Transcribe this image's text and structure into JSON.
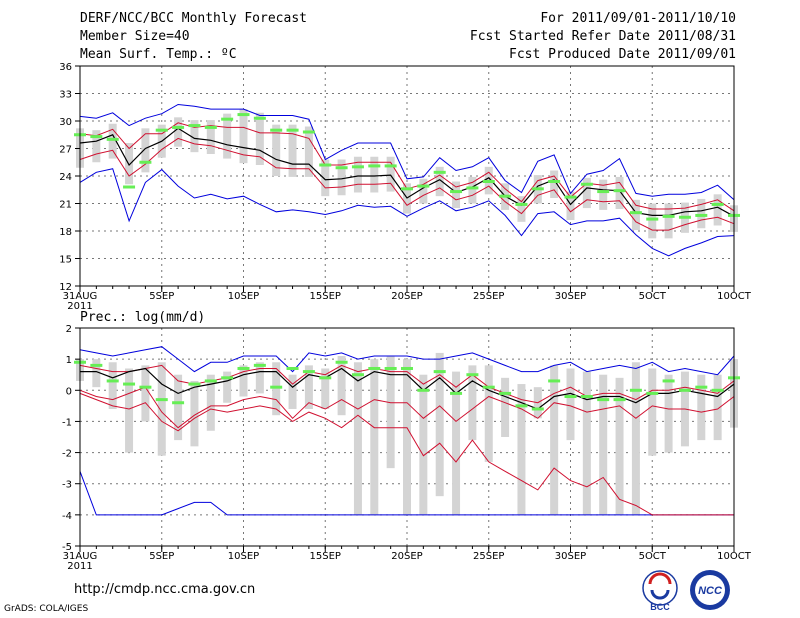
{
  "header": {
    "title": "DERF/NCC/BCC Monthly Forecast",
    "member_size": "Member Size=40",
    "variable": "Mean Surf. Temp.: ºC",
    "period": "For 2011/09/01-2011/10/10",
    "started": "Fcst Started Refer Date 2011/08/31",
    "produced": "Fcst Produced Date 2011/09/01"
  },
  "footer": {
    "url": "http://cmdp.ncc.cma.gov.cn",
    "grads": "GrADS: COLA/IGES",
    "logo_left": "BCC",
    "logo_right": "NCC"
  },
  "colors": {
    "bar": "#d4d4d4",
    "median": "#66ee55",
    "mean": "#000000",
    "envelope": "#d01030",
    "extreme": "#0000dd",
    "grid": "#777777"
  },
  "chart_data": [
    {
      "type": "line",
      "title": "Mean Surf. Temp.: ºC",
      "ylim": [
        12,
        36
      ],
      "yticks": [
        12,
        15,
        18,
        21,
        24,
        27,
        30,
        33,
        36
      ],
      "xlim": [
        0,
        40
      ],
      "xticks": [
        {
          "x": 0,
          "label": "31AUG"
        },
        {
          "x": 5,
          "label": "5SEP"
        },
        {
          "x": 10,
          "label": "10SEP"
        },
        {
          "x": 15,
          "label": "15SEP"
        },
        {
          "x": 20,
          "label": "20SEP"
        },
        {
          "x": 25,
          "label": "25SEP"
        },
        {
          "x": 30,
          "label": "30SEP"
        },
        {
          "x": 35,
          "label": "5OCT"
        },
        {
          "x": 40,
          "label": "10OCT"
        }
      ],
      "year_label": "2011",
      "series": [
        {
          "name": "max",
          "values": [
            30.5,
            30.3,
            30.9,
            29.5,
            30.3,
            30.8,
            31.8,
            31.6,
            31.3,
            31.3,
            31.3,
            30.6,
            30.6,
            30.6,
            30.2,
            25.8,
            26.8,
            27.6,
            27.6,
            27.6,
            23.7,
            23.9,
            26.0,
            24.6,
            25.0,
            26.0,
            23.5,
            22.2,
            25.6,
            26.3,
            22.1,
            24.2,
            24.6,
            25.9,
            22.1,
            21.8,
            22.0,
            22.0,
            22.2,
            23.0,
            21.4
          ]
        },
        {
          "name": "upper",
          "values": [
            28.6,
            28.4,
            29.1,
            27.0,
            28.6,
            28.6,
            29.8,
            29.3,
            29.5,
            29.3,
            29.3,
            28.7,
            28.7,
            28.6,
            28.1,
            25.2,
            25.2,
            25.5,
            25.5,
            25.5,
            22.6,
            23.1,
            24.1,
            22.8,
            23.3,
            24.4,
            22.6,
            21.2,
            23.5,
            24.0,
            21.7,
            23.2,
            23.0,
            23.3,
            20.8,
            20.4,
            20.4,
            20.5,
            20.9,
            21.4,
            20.2
          ]
        },
        {
          "name": "mean",
          "values": [
            27.6,
            27.8,
            28.5,
            25.2,
            27.0,
            27.8,
            29.2,
            28.1,
            27.9,
            27.4,
            27.1,
            26.8,
            25.8,
            25.3,
            25.3,
            23.6,
            23.7,
            24.0,
            24.0,
            24.1,
            21.6,
            22.7,
            23.6,
            22.2,
            22.8,
            23.8,
            21.8,
            20.8,
            22.9,
            23.6,
            20.9,
            22.7,
            22.5,
            22.4,
            20.0,
            19.7,
            19.7,
            20.1,
            20.2,
            20.6,
            19.6
          ]
        },
        {
          "name": "lower",
          "values": [
            25.8,
            26.4,
            26.8,
            24.0,
            25.3,
            26.9,
            28.1,
            27.5,
            27.3,
            26.8,
            26.3,
            26.1,
            24.9,
            24.8,
            24.8,
            22.7,
            22.8,
            23.1,
            23.1,
            23.2,
            20.8,
            21.9,
            22.7,
            21.4,
            21.9,
            22.9,
            21.2,
            19.9,
            21.9,
            22.5,
            20.1,
            21.4,
            21.2,
            21.3,
            19.0,
            18.1,
            18.1,
            18.7,
            19.2,
            19.5,
            18.8
          ]
        },
        {
          "name": "min",
          "values": [
            23.3,
            24.4,
            24.8,
            19.1,
            23.3,
            24.7,
            22.9,
            21.6,
            22.0,
            21.5,
            21.8,
            20.9,
            20.1,
            20.3,
            20.1,
            19.8,
            20.2,
            20.8,
            20.6,
            20.7,
            19.6,
            20.5,
            21.3,
            20.2,
            20.6,
            21.3,
            19.7,
            17.5,
            19.9,
            20.1,
            18.7,
            19.1,
            19.1,
            19.4,
            17.6,
            16.1,
            15.3,
            16.1,
            16.7,
            17.4,
            17.5
          ]
        },
        {
          "name": "median",
          "values": [
            28.5,
            28.3,
            28.0,
            22.8,
            25.5,
            29.0,
            29.3,
            29.5,
            29.3,
            30.2,
            30.7,
            30.3,
            29.0,
            29.0,
            28.8,
            25.2,
            24.9,
            25.0,
            25.1,
            25.1,
            22.6,
            22.9,
            24.4,
            22.3,
            22.7,
            23.4,
            21.8,
            20.9,
            22.6,
            23.4,
            21.7,
            23.1,
            22.3,
            22.4,
            20.0,
            19.3,
            19.6,
            19.5,
            19.7,
            20.9,
            19.7
          ]
        }
      ]
    },
    {
      "type": "line",
      "title": "Prec.: log(mm/d)",
      "ylim": [
        -5,
        2
      ],
      "yticks": [
        -5,
        -4,
        -3,
        -2,
        -1,
        0,
        1,
        2
      ],
      "xlim": [
        0,
        40
      ],
      "xticks": [
        {
          "x": 0,
          "label": "31AUG"
        },
        {
          "x": 5,
          "label": "5SEP"
        },
        {
          "x": 10,
          "label": "10SEP"
        },
        {
          "x": 15,
          "label": "15SEP"
        },
        {
          "x": 20,
          "label": "20SEP"
        },
        {
          "x": 25,
          "label": "25SEP"
        },
        {
          "x": 30,
          "label": "30SEP"
        },
        {
          "x": 35,
          "label": "5OCT"
        },
        {
          "x": 40,
          "label": "10OCT"
        }
      ],
      "year_label": "2011",
      "series": [
        {
          "name": "max",
          "values": [
            1.3,
            1.2,
            1.1,
            1.2,
            1.3,
            1.4,
            1.0,
            0.6,
            0.9,
            0.9,
            1.1,
            1.1,
            1.1,
            0.6,
            1.2,
            1.1,
            1.2,
            1.0,
            1.1,
            1.1,
            1.1,
            1.0,
            1.0,
            1.1,
            1.2,
            1.0,
            0.8,
            0.6,
            0.6,
            0.8,
            0.9,
            0.6,
            0.7,
            0.8,
            0.7,
            0.9,
            0.6,
            0.7,
            0.6,
            0.5,
            1.1
          ]
        },
        {
          "name": "upper",
          "values": [
            0.8,
            0.7,
            0.6,
            0.6,
            0.7,
            0.8,
            0.3,
            0.2,
            0.3,
            0.4,
            0.6,
            0.7,
            0.7,
            0.2,
            0.6,
            0.5,
            0.8,
            0.6,
            0.7,
            0.6,
            0.6,
            0.2,
            0.5,
            0.1,
            0.5,
            0.1,
            -0.1,
            -0.3,
            -0.4,
            -0.1,
            0.1,
            -0.2,
            -0.1,
            -0.1,
            -0.3,
            0.0,
            0.0,
            0.1,
            0.0,
            -0.1,
            0.3
          ]
        },
        {
          "name": "mean",
          "values": [
            0.6,
            0.6,
            0.4,
            0.6,
            0.7,
            0.2,
            -0.1,
            0.1,
            0.2,
            0.3,
            0.5,
            0.6,
            0.6,
            0.1,
            0.5,
            0.4,
            0.7,
            0.3,
            0.6,
            0.5,
            0.5,
            0.0,
            0.4,
            -0.1,
            0.3,
            0.0,
            -0.2,
            -0.4,
            -0.6,
            -0.2,
            -0.1,
            -0.3,
            -0.2,
            -0.2,
            -0.4,
            -0.1,
            -0.1,
            0.0,
            -0.1,
            -0.2,
            0.2
          ]
        },
        {
          "name": "lower",
          "values": [
            0.0,
            -0.2,
            -0.3,
            -0.1,
            0.1,
            -0.7,
            -1.2,
            -0.8,
            -0.5,
            -0.5,
            -0.3,
            -0.2,
            -0.3,
            -0.9,
            -0.4,
            -0.6,
            -0.3,
            -0.6,
            -0.3,
            -0.4,
            -0.4,
            -0.9,
            -0.5,
            -1.0,
            -0.6,
            -0.2,
            -0.4,
            -0.6,
            -0.9,
            -0.4,
            -0.5,
            -0.7,
            -0.6,
            -0.5,
            -0.9,
            -0.5,
            -0.6,
            -0.6,
            -0.7,
            -0.6,
            -0.2
          ]
        },
        {
          "name": "min",
          "values": [
            -2.6,
            -4.0,
            -4.0,
            -4.0,
            -4.0,
            -4.0,
            -3.8,
            -3.6,
            -3.6,
            -4.0,
            -4.0,
            -4.0,
            -4.0,
            -4.0,
            -4.0,
            -4.0,
            -4.0,
            -4.0,
            -4.0,
            -4.0,
            -4.0,
            -4.0,
            -4.0,
            -4.0,
            -4.0,
            -4.0,
            -4.0,
            -4.0,
            -4.0,
            -4.0,
            -4.0,
            -4.0,
            -4.0,
            -4.0,
            -4.0,
            -4.0,
            -4.0,
            -4.0,
            -4.0,
            -4.0,
            -4.0
          ]
        },
        {
          "name": "p10",
          "values": [
            -0.1,
            -0.3,
            -0.5,
            -0.6,
            -0.4,
            -1.0,
            -1.3,
            -0.9,
            -0.6,
            -0.7,
            -0.6,
            -0.5,
            -0.6,
            -1.0,
            -0.7,
            -0.9,
            -1.2,
            -0.8,
            -1.2,
            -1.2,
            -1.2,
            -2.1,
            -1.7,
            -2.3,
            -1.6,
            -2.3,
            -2.6,
            -2.9,
            -3.2,
            -2.5,
            -2.9,
            -3.1,
            -2.8,
            -3.5,
            -3.7,
            -4.0,
            -4.0,
            -4.0,
            -4.0,
            -4.0,
            -4.0
          ]
        },
        {
          "name": "median",
          "values": [
            0.9,
            0.8,
            0.3,
            0.2,
            0.1,
            -0.3,
            -0.4,
            0.2,
            0.3,
            0.4,
            0.7,
            0.8,
            0.1,
            0.7,
            0.6,
            0.4,
            0.9,
            0.5,
            0.7,
            0.7,
            0.7,
            0.0,
            0.6,
            -0.1,
            0.5,
            0.1,
            -0.1,
            -0.5,
            -0.6,
            0.3,
            -0.2,
            -0.2,
            -0.3,
            -0.3,
            0.0,
            -0.1,
            0.3,
            0.0,
            0.1,
            0.0,
            0.4
          ]
        },
        {
          "name": "bar_top",
          "values": [
            1.0,
            1.0,
            0.9,
            0.7,
            0.8,
            0.9,
            0.5,
            0.3,
            0.5,
            0.6,
            0.8,
            0.9,
            0.9,
            0.5,
            0.8,
            0.7,
            1.1,
            0.9,
            1.0,
            1.1,
            1.0,
            0.5,
            1.2,
            0.6,
            0.8,
            0.8,
            0.4,
            0.2,
            0.1,
            0.8,
            0.7,
            0.6,
            0.5,
            0.4,
            0.9,
            0.7,
            0.5,
            0.6,
            0.5,
            0.5,
            1.0
          ]
        },
        {
          "name": "bar_bottom",
          "values": [
            0.3,
            0.1,
            -0.6,
            -2.0,
            -1.0,
            -2.1,
            -1.6,
            -1.8,
            -1.3,
            -0.4,
            -0.2,
            -0.1,
            -0.8,
            -0.6,
            -0.6,
            -0.6,
            -0.8,
            -4.0,
            -4.0,
            -2.5,
            -4.0,
            -4.0,
            -3.4,
            -4.0,
            -1.6,
            -2.3,
            -1.5,
            -4.0,
            -0.9,
            -4.0,
            -1.6,
            -4.0,
            -4.0,
            -4.0,
            -4.0,
            -2.1,
            -2.0,
            -1.8,
            -1.6,
            -1.6,
            -1.2
          ]
        }
      ]
    }
  ]
}
